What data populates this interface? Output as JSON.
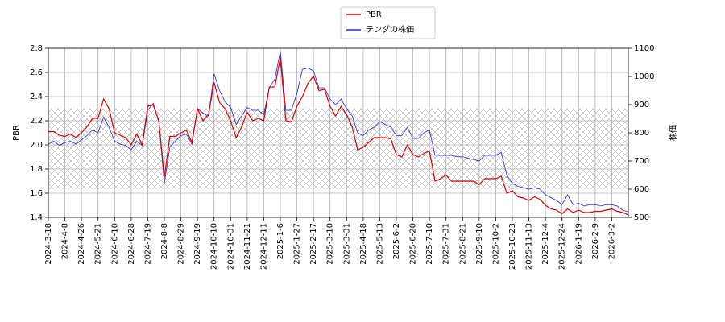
{
  "chart_data": {
    "type": "line",
    "y_label": "PBR",
    "y2_label": "株価",
    "grid": true,
    "legend": "upper center",
    "ylim": [
      1.4,
      2.8
    ],
    "yticks": [
      1.4,
      1.6,
      1.8,
      {
        "value": 2,
        "label": "2.0"
      },
      2.2,
      2.4,
      2.6,
      2.8
    ],
    "y2lim": [
      500,
      1100
    ],
    "y2ticks": [
      500,
      600,
      700,
      800,
      900,
      1000,
      1100
    ],
    "categories": [
      "2024-3-18",
      null,
      null,
      "2024-4-8",
      null,
      null,
      "2024-4-26",
      null,
      null,
      "2024-5-21",
      null,
      null,
      "2024-6-10",
      null,
      null,
      "2024-6-28",
      null,
      null,
      "2024-7-19",
      null,
      null,
      "2024-8-8",
      null,
      null,
      "2024-8-29",
      null,
      null,
      "2024-9-19",
      null,
      null,
      "2024-10-10",
      null,
      null,
      "2024-10-31",
      null,
      null,
      "2024-11-21",
      null,
      null,
      "2024-12-11",
      null,
      null,
      "2025-1-6",
      null,
      null,
      "2025-1-27",
      null,
      null,
      "2025-2-17",
      null,
      null,
      "2025-3-10",
      null,
      null,
      "2025-3-31",
      null,
      null,
      "2025-4-18",
      null,
      null,
      "2025-5-13",
      null,
      null,
      "2025-6-2",
      null,
      null,
      "2025-6-20",
      null,
      null,
      "2025-7-10",
      null,
      null,
      "2025-7-31",
      null,
      null,
      "2025-8-21",
      null,
      null,
      "2025-9-10",
      null,
      null,
      "2025-10-2",
      null,
      null,
      "2025-10-23",
      null,
      null,
      "2025-11-13",
      null,
      null,
      "2025-12-4",
      null,
      null,
      "2025-12-24",
      null,
      null,
      "2026-1-19",
      null,
      null,
      "2026-2-9",
      null,
      null,
      "2026-3-2",
      null,
      null,
      null
    ],
    "series": [
      {
        "name": "PBR",
        "color": "#dd0000",
        "values": [
          2.11,
          2.11,
          2.08,
          2.07,
          2.09,
          2.06,
          2.1,
          2.15,
          2.22,
          2.22,
          2.38,
          2.3,
          2.1,
          2.08,
          2.06,
          2.0,
          2.09,
          2.0,
          2.32,
          2.33,
          2.2,
          1.73,
          2.07,
          2.07,
          2.1,
          2.12,
          2.02,
          2.3,
          2.2,
          2.25,
          2.52,
          2.35,
          2.3,
          2.2,
          2.06,
          2.15,
          2.27,
          2.2,
          2.22,
          2.2,
          2.48,
          2.48,
          2.72,
          2.2,
          2.19,
          2.32,
          2.4,
          2.51,
          2.57,
          2.45,
          2.46,
          2.32,
          2.24,
          2.32,
          2.25,
          2.15,
          1.96,
          1.98,
          2.02,
          2.06,
          2.06,
          2.06,
          2.05,
          1.92,
          1.9,
          2.0,
          1.92,
          1.9,
          1.93,
          1.95,
          1.7,
          1.72,
          1.75,
          1.7,
          1.7,
          1.7,
          1.7,
          1.7,
          1.67,
          1.72,
          1.72,
          1.72,
          1.74,
          1.6,
          1.62,
          1.57,
          1.56,
          1.54,
          1.57,
          1.55,
          1.5,
          1.47,
          1.46,
          1.43,
          1.47,
          1.44,
          1.46,
          1.44,
          1.44,
          1.45,
          1.45,
          1.46,
          1.47,
          1.45,
          1.44,
          1.42
        ]
      },
      {
        "name": "テンダの株価",
        "color": "#2222dd",
        "axis": "y2",
        "values": [
          760,
          770,
          755,
          765,
          770,
          760,
          775,
          790,
          810,
          800,
          855,
          820,
          770,
          760,
          755,
          740,
          770,
          755,
          880,
          905,
          840,
          620,
          750,
          770,
          790,
          795,
          760,
          885,
          870,
          860,
          1010,
          950,
          910,
          890,
          830,
          860,
          890,
          880,
          880,
          865,
          960,
          990,
          1090,
          880,
          880,
          940,
          1025,
          1030,
          1020,
          960,
          960,
          920,
          900,
          920,
          885,
          860,
          800,
          790,
          810,
          820,
          840,
          830,
          820,
          790,
          790,
          820,
          780,
          780,
          800,
          810,
          720,
          720,
          720,
          720,
          715,
          715,
          710,
          705,
          700,
          720,
          720,
          720,
          730,
          650,
          620,
          610,
          605,
          600,
          605,
          600,
          580,
          570,
          560,
          545,
          580,
          545,
          550,
          540,
          545,
          545,
          540,
          545,
          545,
          540,
          525,
          520
        ]
      }
    ]
  }
}
